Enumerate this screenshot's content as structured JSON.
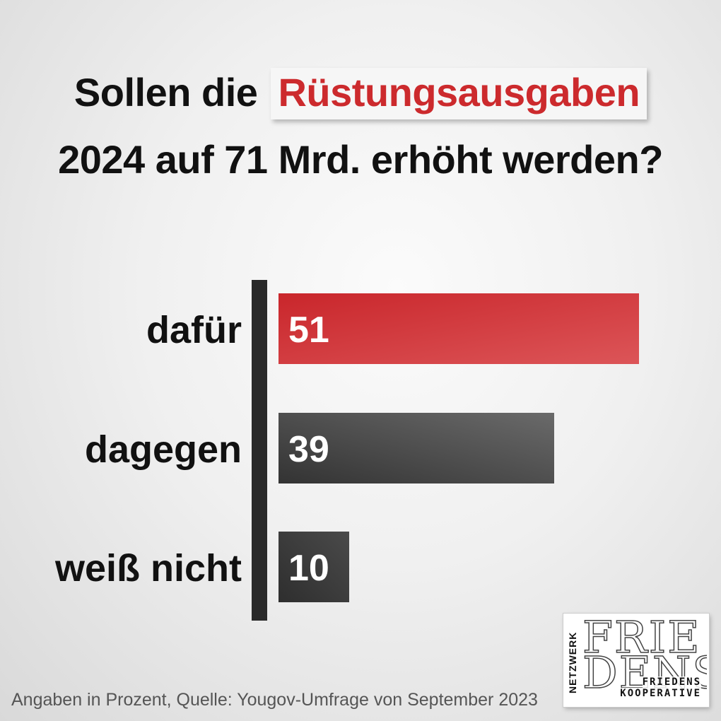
{
  "header": {
    "title_part1": "Sollen die",
    "title_highlight": "Rüstungsausgaben",
    "title_line2": "2024 auf 71 Mrd. erhöht werden?"
  },
  "chart_data": {
    "type": "bar",
    "orientation": "horizontal",
    "categories": [
      "dafür",
      "dagegen",
      "weiß nicht"
    ],
    "values": [
      51,
      39,
      10
    ],
    "xlim": [
      0,
      100
    ],
    "grid": false,
    "colors": [
      "#cc2a2d",
      "#4a4a4a",
      "#3a3a3a"
    ]
  },
  "footnote": "Angaben in Prozent, Quelle: Yougov-Umfrage von September 2023",
  "logo": {
    "vertical": "NETZWERK",
    "big_line1": "FRIE",
    "big_line2": "DENS",
    "small_line1": "FRIEDENS",
    "small_line2": "KOOPERATIVE"
  }
}
